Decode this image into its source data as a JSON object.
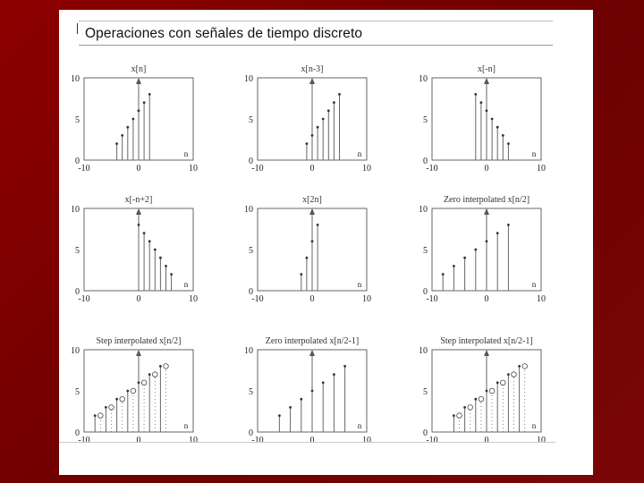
{
  "slide": {
    "title": "Operaciones con señales de tiempo discreto",
    "background_color": "#8e0000"
  },
  "chart_data": [
    {
      "type": "stem",
      "title": "x[n]",
      "xlim": [
        -10,
        10
      ],
      "ylim": [
        0,
        10
      ],
      "x_ticks": [
        "-10",
        "0",
        "10"
      ],
      "y_ticks": [
        "0",
        "5",
        "10"
      ],
      "n_label": "n",
      "grid": false,
      "x": [
        -4,
        -3,
        -2,
        -1,
        0,
        1,
        2
      ],
      "y": [
        2,
        3,
        4,
        5,
        6,
        7,
        8
      ]
    },
    {
      "type": "stem",
      "title": "x[n-3]",
      "xlim": [
        -10,
        10
      ],
      "ylim": [
        0,
        10
      ],
      "x_ticks": [
        "-10",
        "0",
        "10"
      ],
      "y_ticks": [
        "0",
        "5",
        "10"
      ],
      "n_label": "n",
      "grid": false,
      "x": [
        -1,
        0,
        1,
        2,
        3,
        4,
        5
      ],
      "y": [
        2,
        3,
        4,
        5,
        6,
        7,
        8
      ]
    },
    {
      "type": "stem",
      "title": "x[-n]",
      "xlim": [
        -10,
        10
      ],
      "ylim": [
        0,
        10
      ],
      "x_ticks": [
        "-10",
        "0",
        "10"
      ],
      "y_ticks": [
        "0",
        "5",
        "10"
      ],
      "n_label": "n",
      "grid": false,
      "x": [
        -2,
        -1,
        0,
        1,
        2,
        3,
        4
      ],
      "y": [
        8,
        7,
        6,
        5,
        4,
        3,
        2
      ]
    },
    {
      "type": "stem",
      "title": "x[-n+2]",
      "xlim": [
        -10,
        10
      ],
      "ylim": [
        0,
        10
      ],
      "x_ticks": [
        "-10",
        "0",
        "10"
      ],
      "y_ticks": [
        "0",
        "5",
        "10"
      ],
      "n_label": "n",
      "grid": false,
      "x": [
        0,
        1,
        2,
        3,
        4,
        5,
        6
      ],
      "y": [
        8,
        7,
        6,
        5,
        4,
        3,
        2
      ]
    },
    {
      "type": "stem",
      "title": "x[2n]",
      "xlim": [
        -10,
        10
      ],
      "ylim": [
        0,
        10
      ],
      "x_ticks": [
        "-10",
        "0",
        "10"
      ],
      "y_ticks": [
        "0",
        "5",
        "10"
      ],
      "n_label": "n",
      "grid": false,
      "x": [
        -2,
        -1,
        0,
        1
      ],
      "y": [
        2,
        4,
        6,
        8
      ]
    },
    {
      "type": "stem",
      "title": "Zero interpolated x[n/2]",
      "xlim": [
        -10,
        10
      ],
      "ylim": [
        0,
        10
      ],
      "x_ticks": [
        "-10",
        "0",
        "10"
      ],
      "y_ticks": [
        "0",
        "5",
        "10"
      ],
      "n_label": "n",
      "grid": false,
      "x": [
        -8,
        -6,
        -4,
        -2,
        0,
        2,
        4
      ],
      "y": [
        2,
        3,
        4,
        5,
        6,
        7,
        8
      ]
    },
    {
      "type": "stem",
      "title": "Step interpolated x[n/2]",
      "xlim": [
        -10,
        10
      ],
      "ylim": [
        0,
        10
      ],
      "x_ticks": [
        "-10",
        "0",
        "10"
      ],
      "y_ticks": [
        "0",
        "5",
        "10"
      ],
      "n_label": "n",
      "grid": false,
      "x": [
        -8,
        -6,
        -4,
        -2,
        0,
        2,
        4
      ],
      "y": [
        2,
        3,
        4,
        5,
        6,
        7,
        8
      ],
      "interp_x": [
        -7,
        -5,
        -3,
        -1,
        1,
        3,
        5
      ],
      "interp_y": [
        2,
        3,
        4,
        5,
        6,
        7,
        8
      ]
    },
    {
      "type": "stem",
      "title": "Zero interpolated x[n/2-1]",
      "xlim": [
        -10,
        10
      ],
      "ylim": [
        0,
        10
      ],
      "x_ticks": [
        "-10",
        "0",
        "10"
      ],
      "y_ticks": [
        "0",
        "5",
        "10"
      ],
      "n_label": "n",
      "grid": false,
      "x": [
        -6,
        -4,
        -2,
        0,
        2,
        4,
        6
      ],
      "y": [
        2,
        3,
        4,
        5,
        6,
        7,
        8
      ]
    },
    {
      "type": "stem",
      "title": "Step interpolated x[n/2-1]",
      "xlim": [
        -10,
        10
      ],
      "ylim": [
        0,
        10
      ],
      "x_ticks": [
        "-10",
        "0",
        "10"
      ],
      "y_ticks": [
        "0",
        "5",
        "10"
      ],
      "n_label": "n",
      "grid": false,
      "x": [
        -6,
        -4,
        -2,
        0,
        2,
        4,
        6
      ],
      "y": [
        2,
        3,
        4,
        5,
        6,
        7,
        8
      ],
      "interp_x": [
        -5,
        -3,
        -1,
        1,
        3,
        5,
        7
      ],
      "interp_y": [
        2,
        3,
        4,
        5,
        6,
        7,
        8
      ]
    }
  ]
}
